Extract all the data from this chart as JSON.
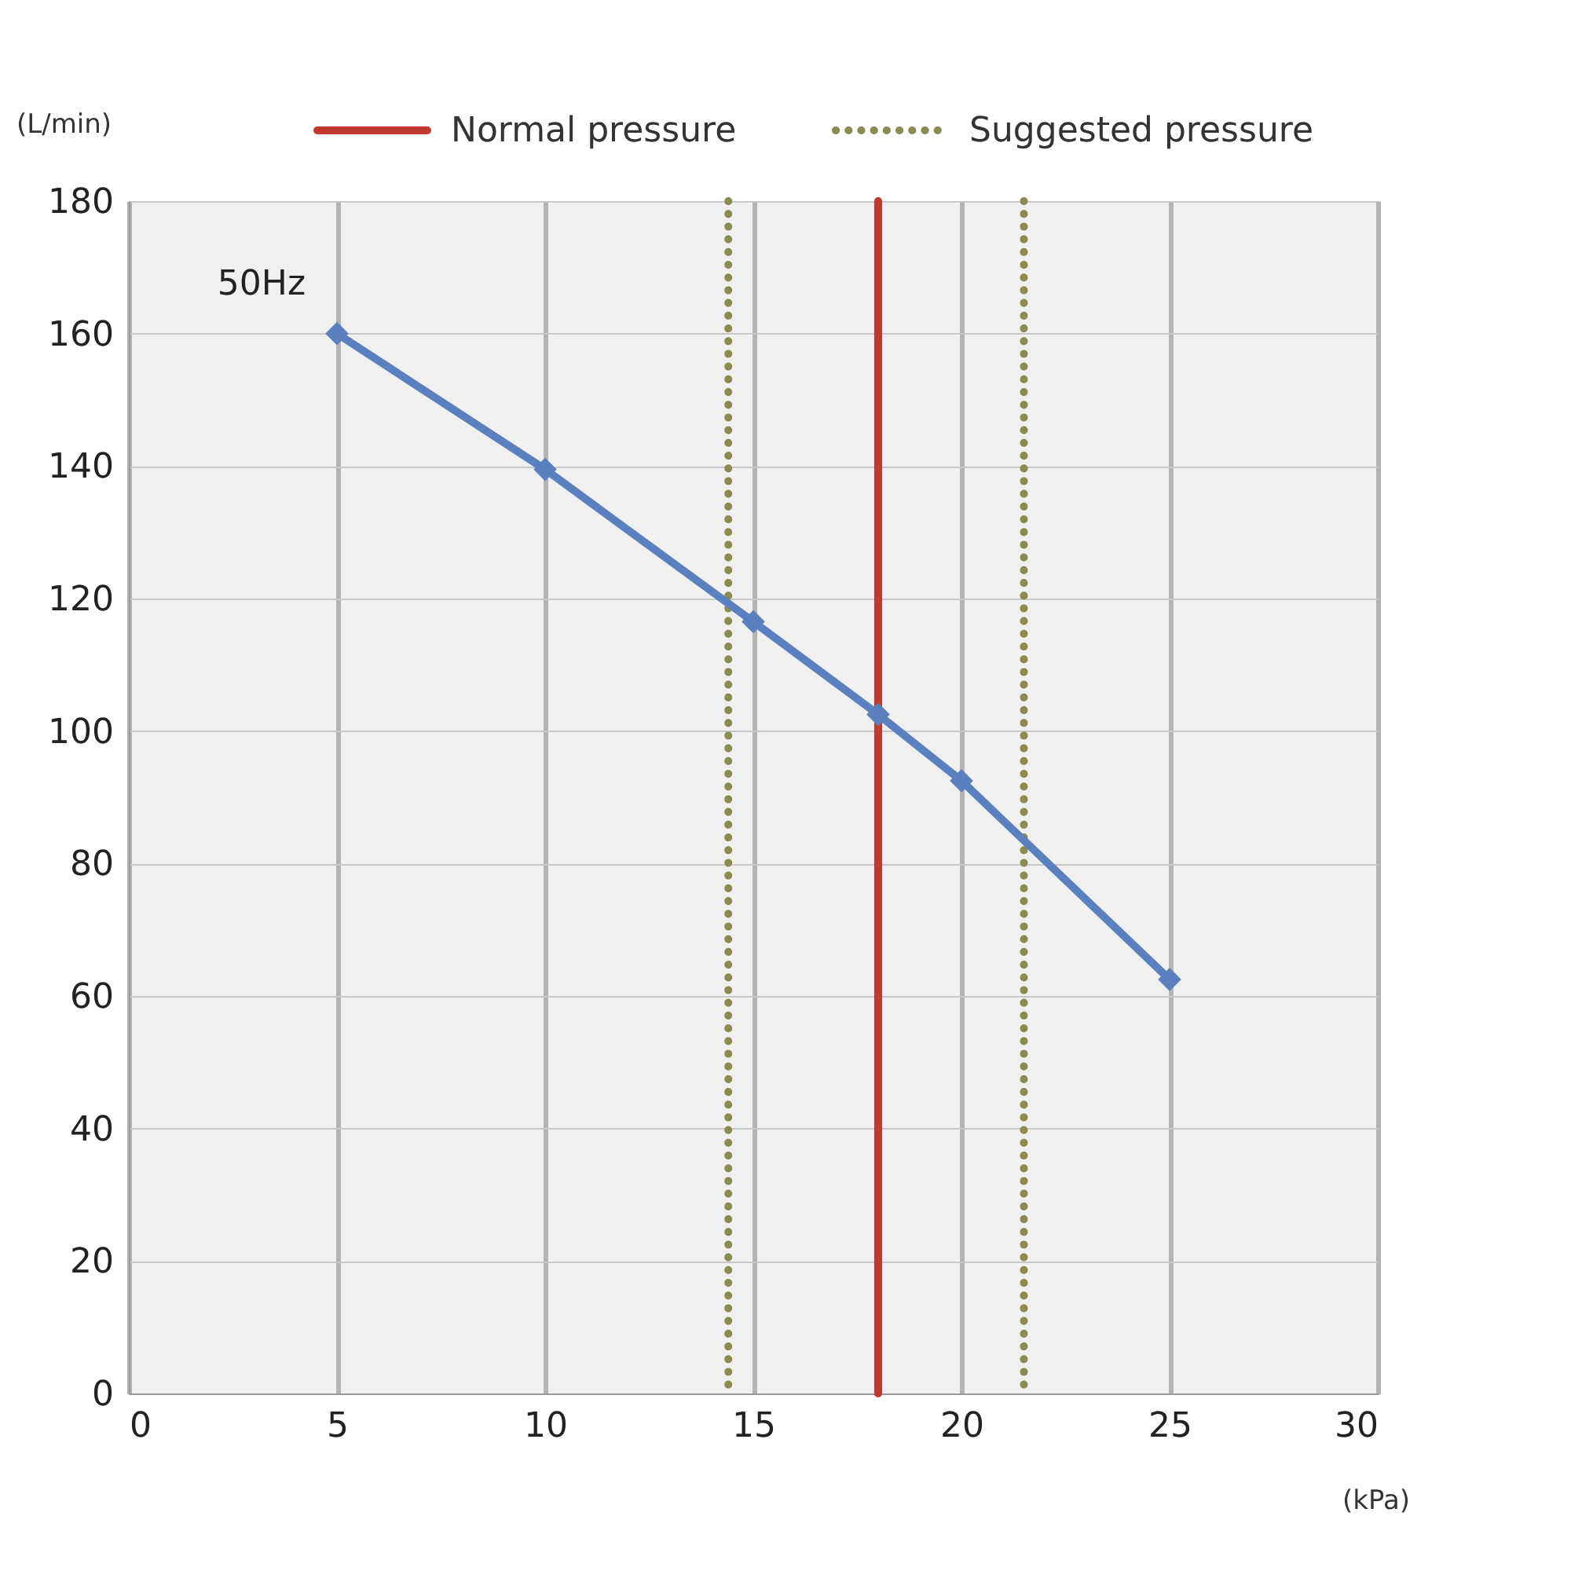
{
  "chart_data": {
    "type": "line",
    "xlabel": "(kPa)",
    "ylabel": "(L/min)",
    "x": [
      5,
      10,
      15,
      18,
      20,
      25
    ],
    "series": [
      {
        "name": "50Hz",
        "color": "#5a80c0",
        "values": [
          160,
          139.5,
          116.5,
          102.5,
          92.5,
          62.5
        ]
      }
    ],
    "xlim": [
      0,
      30
    ],
    "xticks": [
      0,
      5,
      10,
      15,
      20,
      25,
      30
    ],
    "ylim": [
      0,
      180
    ],
    "yticks": [
      0,
      20,
      40,
      60,
      80,
      100,
      120,
      140,
      160,
      180
    ],
    "ref_lines": [
      {
        "axis": "x",
        "value": 18,
        "label": "Normal pressure",
        "color": "#c0392f",
        "line_style": "solid"
      },
      {
        "axis": "x",
        "value": 14.4,
        "label": "Suggested pressure",
        "color": "#8c8a50",
        "line_style": "dotted"
      },
      {
        "axis": "x",
        "value": 21.5,
        "color": "#8c8a50",
        "line_style": "dotted"
      }
    ],
    "grid": true,
    "legend": "top",
    "marker": "diamond",
    "line_style": "solid"
  }
}
